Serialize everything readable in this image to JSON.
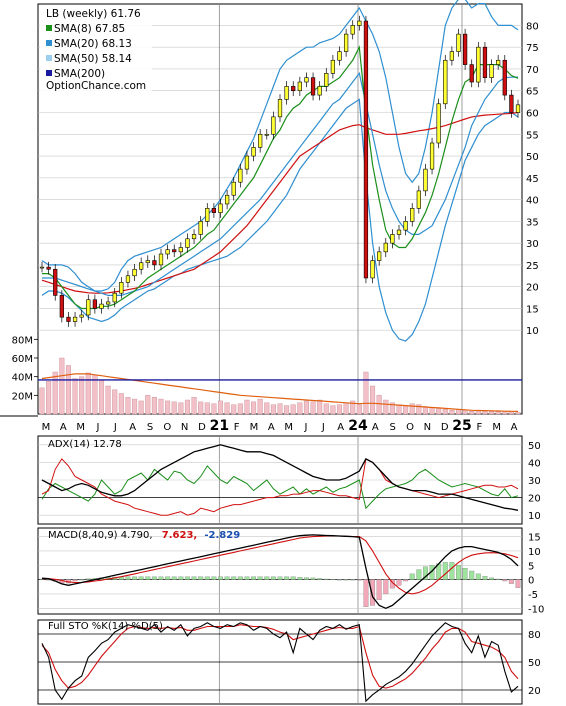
{
  "chart_data": {
    "type": "line",
    "source": "OptionChance.com",
    "colors": {
      "sma8": "#1a8f1a",
      "sma20": "#2f8fd0",
      "sma50": "#9ccfee",
      "sma200": "#1a1aa0",
      "sma_long_line": "#d01010",
      "band": "#2f8fd0",
      "up_candle": "#ffff33",
      "down_candle": "#d01010",
      "volume_bar": "#f2c1c8",
      "volume_line": "#e06010",
      "adx": "#000000",
      "plus_di": "#1a8f1a",
      "minus_di": "#d01010",
      "macd_line": "#000000",
      "signal_line": "#d01010",
      "hist_up": "#9de39d",
      "hist_down": "#f2a8b8"
    },
    "price_panel": {
      "legend": [
        {
          "label": "LB (weekly) 61.76",
          "color": ""
        },
        {
          "label": "SMA(8) 67.85",
          "color": "#1a8f1a"
        },
        {
          "label": "SMA(20) 68.13",
          "color": "#2f8fd0"
        },
        {
          "label": "SMA(50) 58.14",
          "color": "#9ccfee"
        },
        {
          "label": "SMA(200)",
          "color": "#1a1aa0"
        }
      ],
      "watermark": "OptionChance.com",
      "y_ticks": [
        "80",
        "75",
        "70",
        "65",
        "60",
        "55",
        "50",
        "45",
        "40",
        "35",
        "30",
        "25",
        "20",
        "15",
        "10"
      ],
      "ylim": [
        5,
        84
      ],
      "volume_ticks": [
        "80M",
        "60M",
        "40M",
        "20M"
      ],
      "x_labels": [
        "M",
        "A",
        "M",
        "J",
        "J",
        "A",
        "S",
        "O",
        "N",
        "D",
        "21",
        "F",
        "M",
        "A",
        "M",
        "J",
        "J",
        "A",
        "24",
        "A",
        "S",
        "O",
        "N",
        "D",
        "25",
        "F",
        "M",
        "A"
      ],
      "close": [
        24.5,
        24,
        18,
        13,
        12,
        13,
        13.5,
        17,
        15,
        16,
        16.5,
        18.5,
        21,
        22.5,
        24,
        25.5,
        26,
        25,
        27.5,
        28.5,
        28,
        29,
        31,
        32,
        35,
        38,
        37,
        39,
        41,
        44,
        47,
        50,
        52,
        55,
        55,
        59,
        63,
        66,
        65,
        67,
        68,
        64,
        66,
        69,
        72,
        74,
        78,
        80,
        81,
        22,
        26,
        28,
        30,
        32,
        33,
        35,
        38,
        42,
        47,
        53,
        62,
        72,
        74,
        78,
        71,
        67,
        75,
        68,
        71,
        72,
        64,
        60,
        61.76
      ],
      "sma8": [
        23,
        23,
        22,
        20,
        18,
        16,
        15,
        15,
        15,
        15.5,
        15.5,
        16,
        17,
        18,
        19,
        20.5,
        22,
        23,
        24,
        25,
        26,
        27,
        28,
        29,
        30.5,
        32,
        33,
        35,
        37,
        39,
        41,
        43,
        45,
        48,
        51,
        54,
        56,
        59,
        61,
        62,
        64,
        65,
        66,
        66,
        67,
        68,
        70,
        72,
        75,
        60,
        48,
        40,
        33,
        30,
        29,
        29,
        31,
        34,
        37,
        41,
        46,
        52,
        58,
        63,
        67,
        68,
        71,
        71,
        71,
        71,
        70,
        68.5,
        67.85
      ],
      "sma20": [
        22,
        22,
        22,
        21.5,
        21,
        20.5,
        20,
        19.5,
        19,
        18.5,
        18,
        18,
        18,
        18.5,
        19,
        19.5,
        20,
        21,
        22,
        23,
        24,
        25,
        26,
        27,
        28,
        29,
        30,
        31,
        32.5,
        34,
        35.5,
        37,
        38.5,
        40,
        42,
        44,
        46,
        48,
        50,
        52,
        54,
        56,
        58,
        60,
        62,
        63,
        65,
        67,
        69,
        62,
        55,
        48,
        42,
        38,
        35,
        33,
        32,
        32,
        33,
        34,
        37,
        40,
        44,
        48,
        52,
        57,
        60,
        63,
        65,
        67,
        68,
        68.1,
        68.13
      ],
      "upper_band": [
        26,
        25,
        25,
        25,
        24.5,
        23,
        21,
        20,
        19,
        19,
        19.5,
        21,
        24,
        26,
        27,
        27.5,
        28,
        28.5,
        29,
        30,
        31,
        32,
        33,
        34,
        35,
        36.5,
        38,
        40,
        42.5,
        45,
        48,
        51,
        54,
        58,
        62,
        66,
        70,
        72,
        73,
        74,
        75,
        75,
        76,
        76.5,
        77,
        78,
        80,
        82,
        84,
        81,
        78,
        74,
        68,
        60,
        52,
        46,
        44,
        46,
        52,
        60,
        70,
        80,
        84,
        86,
        86,
        84,
        85,
        85,
        82,
        80,
        80,
        80,
        79
      ],
      "lower_band": [
        18,
        19,
        19,
        18.5,
        17.5,
        16,
        14.5,
        13,
        12.5,
        12,
        12.5,
        13.5,
        15,
        16,
        17,
        18,
        19,
        19.5,
        20.5,
        21.5,
        22.5,
        23,
        24,
        24.5,
        25,
        25.5,
        26,
        26.5,
        27,
        28,
        29,
        30.5,
        32,
        33.5,
        35,
        37,
        39,
        41,
        44,
        47,
        49,
        51,
        53,
        55,
        57,
        59,
        61,
        62,
        63,
        45,
        30,
        20,
        14,
        10,
        8,
        7.5,
        9,
        12,
        16,
        22,
        28,
        34,
        39,
        44,
        49,
        52,
        55,
        57,
        58,
        59,
        60,
        60,
        59
      ],
      "sma50": [
        18,
        18.5,
        19,
        19.5,
        20,
        20.3,
        20.6,
        21,
        21.2,
        21.5,
        21.8,
        22,
        22.5,
        23,
        23.5,
        24,
        24.5,
        25,
        25.5,
        26,
        26.5,
        27,
        27.5,
        28,
        28.5,
        29,
        30,
        31,
        32,
        33,
        34,
        35,
        36,
        37,
        38,
        39,
        40,
        41,
        42,
        43,
        44,
        45,
        46,
        47,
        48,
        49,
        50,
        51,
        52,
        51,
        50,
        49,
        48,
        47,
        46,
        46,
        45.5,
        45.5,
        46,
        46.5,
        47,
        48,
        49,
        50,
        51,
        52,
        53,
        54,
        55,
        56,
        57,
        57.5,
        58.14
      ],
      "sma_long": [
        21.5,
        21,
        20.5,
        20,
        19.5,
        19,
        18.8,
        18.6,
        18.5,
        18.5,
        18.6,
        18.8,
        19,
        19.3,
        19.6,
        20,
        20.5,
        21,
        21.5,
        22,
        22.5,
        23,
        23.5,
        24,
        25,
        26,
        27,
        28,
        29.5,
        31,
        32.5,
        34,
        36,
        38,
        40,
        42,
        44,
        46,
        48,
        50,
        51,
        52,
        53,
        54,
        55,
        56,
        56.5,
        57,
        57.2,
        56.5,
        56,
        55.5,
        55,
        55,
        55,
        55.2,
        55.5,
        55.8,
        56,
        56.3,
        56.6,
        57,
        57.5,
        58,
        58.5,
        59,
        59.2,
        59.4,
        59.5,
        59.6,
        59.7,
        59.8,
        60
      ],
      "sma200_level": 36.5,
      "volume_millions": [
        28,
        35,
        45,
        60,
        52,
        38,
        40,
        44,
        42,
        36,
        30,
        26,
        22,
        18,
        16,
        14,
        20,
        18,
        16,
        14,
        13,
        12,
        15,
        18,
        13,
        12,
        11,
        14,
        12,
        10,
        11,
        15,
        13,
        16,
        12,
        10,
        11,
        9,
        10,
        12,
        14,
        13,
        15,
        11,
        9,
        10,
        12,
        14,
        10,
        45,
        30,
        20,
        15,
        12,
        10,
        9,
        11,
        10,
        8,
        7,
        6,
        5,
        4,
        5,
        4,
        3,
        3.5,
        3,
        2.5,
        2.5,
        3,
        3,
        2
      ],
      "volume_trend": [
        38,
        39,
        40,
        41,
        42,
        43,
        43,
        43,
        42,
        41,
        40,
        39,
        38,
        37,
        36,
        35,
        34,
        33,
        32,
        31,
        30,
        29,
        28,
        27,
        26,
        25,
        24,
        23,
        22,
        21,
        20,
        19.5,
        19,
        18.5,
        18,
        17.5,
        17,
        16.5,
        16,
        15.5,
        15,
        14.5,
        14,
        13.5,
        13,
        12.5,
        12,
        11.5,
        11,
        11.5,
        11.5,
        11,
        10.5,
        10,
        9.5,
        9,
        8.5,
        8,
        7.5,
        7,
        6.5,
        6,
        5.5,
        5,
        4.5,
        4,
        3.8,
        3.6,
        3.4,
        3.2,
        3,
        2.9,
        2.8
      ]
    },
    "adx_panel": {
      "label": "ADX(14) 12.78",
      "y_ticks": [
        "50",
        "40",
        "30",
        "20",
        "10"
      ],
      "ylim": [
        5,
        55
      ],
      "adx": [
        30,
        28,
        26,
        24,
        25,
        27,
        28,
        27,
        25,
        23,
        22,
        21,
        21,
        22,
        24,
        27,
        30,
        33,
        36,
        38,
        40,
        42,
        44,
        46,
        47,
        48,
        49,
        50,
        49,
        48,
        47,
        46,
        46,
        46,
        45,
        44,
        42,
        40,
        38,
        36,
        34,
        32,
        31,
        30,
        30,
        30,
        31,
        33,
        35,
        42,
        40,
        36,
        32,
        28,
        26,
        25,
        24,
        24,
        24,
        23,
        22,
        22,
        22,
        21,
        20,
        19,
        18,
        17,
        16,
        15,
        14,
        13.5,
        12.78
      ],
      "plus_di": [
        19,
        25,
        28,
        26,
        24,
        22,
        20,
        18,
        22,
        30,
        26,
        22,
        24,
        30,
        32,
        34,
        30,
        36,
        33,
        30,
        35,
        34,
        30,
        28,
        32,
        38,
        34,
        30,
        28,
        32,
        30,
        28,
        24,
        27,
        30,
        25,
        22,
        24,
        26,
        22,
        25,
        22,
        24,
        26,
        23,
        25,
        26,
        28,
        30,
        14,
        18,
        22,
        25,
        26,
        27,
        28,
        30,
        34,
        36,
        33,
        30,
        28,
        26,
        27,
        28,
        27,
        26,
        24,
        22,
        21,
        25,
        20,
        21
      ],
      "minus_di": [
        22,
        24,
        36,
        42,
        38,
        32,
        30,
        28,
        26,
        22,
        20,
        18,
        17,
        16,
        14,
        13,
        12,
        11,
        10,
        10,
        11,
        12,
        10,
        11,
        14,
        13,
        12,
        14,
        15,
        16,
        16,
        17,
        18,
        19,
        20,
        20,
        21,
        21,
        22,
        22,
        23,
        24,
        24,
        23,
        22,
        21,
        21,
        20,
        19,
        42,
        40,
        36,
        30,
        28,
        26,
        25,
        24,
        23,
        22,
        21,
        20,
        21,
        22,
        23,
        24,
        25,
        26,
        27,
        27,
        26,
        26,
        27,
        25
      ]
    },
    "macd_panel": {
      "label": "MACD(8,40,9) 4.790,",
      "label_signal": "7.623,",
      "label_hist": "-2.829",
      "label_signal_color": "#d01010",
      "label_hist_color": "#1a4fb0",
      "y_ticks": [
        "15",
        "10",
        "5",
        "0",
        "-5",
        "-10"
      ],
      "ylim": [
        -12,
        18
      ],
      "macd": [
        0.5,
        0.3,
        -0.5,
        -1.5,
        -2,
        -1.5,
        -1,
        -0.5,
        0,
        0.5,
        1,
        1.5,
        2,
        2.5,
        3,
        3.5,
        4,
        4.5,
        5,
        5.5,
        6,
        6.5,
        7,
        7.5,
        8,
        8.5,
        9,
        9.5,
        10,
        10.5,
        11,
        11.5,
        12,
        12.5,
        13,
        13.5,
        14,
        14.5,
        15,
        15.3,
        15.5,
        15.6,
        15.5,
        15.4,
        15.3,
        15.2,
        15.1,
        15,
        14.8,
        4,
        -6,
        -9,
        -10,
        -9,
        -7,
        -5,
        -3,
        -1,
        1,
        3,
        5.5,
        8,
        10,
        11,
        11.5,
        11.5,
        11,
        10.5,
        10,
        9.5,
        8.5,
        7,
        4.79
      ],
      "signal": [
        0.3,
        0.3,
        0.1,
        -0.3,
        -0.8,
        -1,
        -1,
        -0.8,
        -0.5,
        -0.2,
        0.2,
        0.6,
        1,
        1.5,
        2,
        2.5,
        3,
        3.5,
        4,
        4.5,
        5,
        5.5,
        6,
        6.5,
        7,
        7.5,
        8,
        8.5,
        9,
        9.5,
        10,
        10.5,
        11,
        11.5,
        12,
        12.5,
        13,
        13.5,
        14,
        14.5,
        14.8,
        15,
        15.1,
        15.2,
        15.2,
        15.2,
        15.1,
        15,
        15,
        13.5,
        10,
        6,
        2,
        -1,
        -3,
        -4.5,
        -5,
        -4.5,
        -3.5,
        -2,
        0,
        2,
        4,
        6,
        7.5,
        8.5,
        9,
        9.3,
        9.4,
        9.3,
        9,
        8.4,
        7.623
      ],
      "hist": [
        0.2,
        0,
        -0.6,
        -1.2,
        -1.2,
        -0.5,
        0,
        0.3,
        0.5,
        0.7,
        0.8,
        0.9,
        1,
        1,
        1,
        1,
        1,
        1,
        1,
        1,
        1,
        1,
        1,
        1,
        1,
        1,
        1,
        1,
        1,
        1,
        1,
        1,
        1,
        1,
        1,
        1,
        1,
        1,
        1,
        0.8,
        0.7,
        0.6,
        0.4,
        0.2,
        0.1,
        0,
        0,
        0,
        -0.2,
        -9.5,
        -9,
        -7,
        -5,
        -3,
        -2,
        -0.5,
        2,
        3.5,
        4.5,
        5,
        5.5,
        6,
        6,
        5,
        4,
        3,
        2,
        1.2,
        0.6,
        0.2,
        -0.5,
        -1.4,
        -2.829
      ]
    },
    "sto_panel": {
      "label": "Full STO %K(14) %D(5)",
      "y_ticks": [
        "80",
        "50",
        "20"
      ],
      "ylim": [
        5,
        95
      ],
      "k": [
        70,
        55,
        20,
        10,
        22,
        30,
        35,
        55,
        62,
        70,
        74,
        82,
        86,
        90,
        88,
        86,
        84,
        90,
        82,
        88,
        84,
        90,
        78,
        86,
        88,
        92,
        88,
        86,
        90,
        88,
        92,
        90,
        84,
        88,
        86,
        80,
        76,
        82,
        60,
        86,
        80,
        74,
        84,
        88,
        86,
        90,
        85,
        88,
        90,
        8,
        15,
        20,
        26,
        30,
        34,
        40,
        48,
        58,
        68,
        78,
        85,
        92,
        88,
        86,
        70,
        60,
        78,
        55,
        72,
        68,
        40,
        18,
        24
      ],
      "d": [
        68,
        60,
        42,
        30,
        22,
        24,
        28,
        36,
        46,
        56,
        64,
        72,
        80,
        86,
        88,
        87,
        86,
        87,
        86,
        87,
        86,
        87,
        84,
        84,
        86,
        88,
        88,
        88,
        88,
        88,
        90,
        89,
        88,
        88,
        87,
        85,
        82,
        80,
        74,
        76,
        78,
        80,
        82,
        84,
        86,
        87,
        86,
        86,
        88,
        60,
        36,
        24,
        22,
        24,
        28,
        32,
        38,
        46,
        54,
        64,
        72,
        82,
        86,
        86,
        82,
        72,
        70,
        68,
        66,
        62,
        55,
        40,
        32
      ]
    }
  }
}
